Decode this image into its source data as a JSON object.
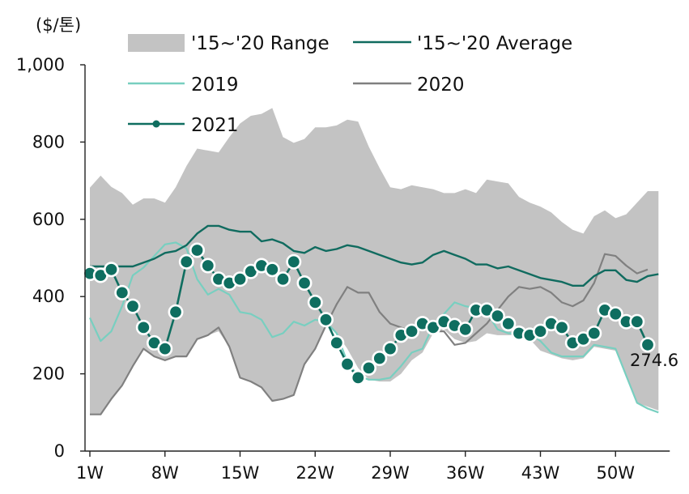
{
  "chart_data": {
    "type": "line",
    "unit_label": "($/톤)",
    "ylim": [
      0,
      1000
    ],
    "y_ticks": [
      {
        "value": 0,
        "label": "0"
      },
      {
        "value": 200,
        "label": "200"
      },
      {
        "value": 400,
        "label": "400"
      },
      {
        "value": 600,
        "label": "600"
      },
      {
        "value": 800,
        "label": "800"
      },
      {
        "value": 1000,
        "label": "1,000"
      }
    ],
    "x_ticks": [
      {
        "week": 1,
        "label": "1W"
      },
      {
        "week": 8,
        "label": "8W"
      },
      {
        "week": 15,
        "label": "15W"
      },
      {
        "week": 22,
        "label": "22W"
      },
      {
        "week": 29,
        "label": "29W"
      },
      {
        "week": 36,
        "label": "36W"
      },
      {
        "week": 43,
        "label": "43W"
      },
      {
        "week": 50,
        "label": "50W"
      }
    ],
    "colors": {
      "range": "#c3c3c3",
      "avg": "#106b5f",
      "y2019": "#78cfc0",
      "y2020": "#808080",
      "y2021": "#0f6e60",
      "axis": "#222222"
    },
    "legend": {
      "range": "'15~'20 Range",
      "avg": "'15~'20 Average",
      "y2019": "2019",
      "y2020": "2020",
      "y2021": "2021"
    },
    "range_upper": [
      682,
      713,
      684,
      668,
      638,
      654,
      654,
      643,
      683,
      738,
      783,
      778,
      773,
      813,
      848,
      868,
      873,
      888,
      813,
      798,
      808,
      838,
      838,
      843,
      858,
      853,
      788,
      733,
      683,
      678,
      688,
      683,
      678,
      668,
      668,
      678,
      668,
      703,
      698,
      693,
      658,
      643,
      633,
      618,
      593,
      573,
      563,
      608,
      623,
      603,
      613,
      643,
      673,
      673
    ],
    "range_lower": [
      95,
      95,
      135,
      170,
      220,
      265,
      245,
      235,
      245,
      245,
      290,
      300,
      310,
      270,
      190,
      180,
      165,
      130,
      135,
      145,
      225,
      265,
      325,
      305,
      265,
      215,
      185,
      180,
      180,
      200,
      235,
      255,
      305,
      315,
      290,
      280,
      285,
      305,
      300,
      300,
      300,
      290,
      260,
      250,
      240,
      235,
      240,
      270,
      265,
      260,
      190,
      125,
      115,
      105
    ],
    "avg_2015_2020": [
      478,
      478,
      478,
      478,
      478,
      488,
      498,
      513,
      518,
      533,
      563,
      583,
      583,
      573,
      568,
      568,
      543,
      548,
      538,
      518,
      513,
      528,
      518,
      523,
      533,
      528,
      518,
      508,
      498,
      488,
      483,
      488,
      508,
      518,
      508,
      498,
      483,
      483,
      473,
      478,
      468,
      458,
      448,
      443,
      438,
      428,
      428,
      453,
      468,
      468,
      443,
      438,
      453,
      458
    ],
    "series_2019": [
      345,
      285,
      310,
      375,
      455,
      475,
      505,
      535,
      540,
      525,
      445,
      405,
      420,
      405,
      360,
      355,
      340,
      295,
      305,
      335,
      325,
      340,
      335,
      305,
      230,
      195,
      185,
      185,
      190,
      220,
      255,
      265,
      325,
      355,
      385,
      375,
      370,
      360,
      315,
      305,
      305,
      305,
      285,
      255,
      245,
      245,
      245,
      275,
      270,
      265,
      195,
      125,
      110,
      100
    ],
    "series_2020": [
      95,
      95,
      135,
      170,
      220,
      265,
      245,
      235,
      245,
      245,
      290,
      300,
      320,
      270,
      190,
      180,
      165,
      130,
      135,
      145,
      225,
      265,
      325,
      380,
      425,
      410,
      410,
      360,
      330,
      320,
      310,
      315,
      310,
      310,
      275,
      280,
      305,
      330,
      365,
      400,
      425,
      420,
      425,
      410,
      385,
      375,
      390,
      435,
      510,
      505,
      480,
      460,
      470
    ],
    "series_2021": [
      460,
      455,
      470,
      410,
      375,
      320,
      280,
      265,
      360,
      490,
      520,
      480,
      445,
      435,
      445,
      465,
      480,
      470,
      445,
      490,
      435,
      385,
      340,
      280,
      225,
      190,
      215,
      240,
      265,
      300,
      310,
      330,
      320,
      335,
      325,
      315,
      365,
      365,
      350,
      330,
      305,
      300,
      310,
      330,
      320,
      280,
      290,
      305,
      365,
      355,
      335,
      335,
      275
    ],
    "last_value_label": "274.6"
  }
}
